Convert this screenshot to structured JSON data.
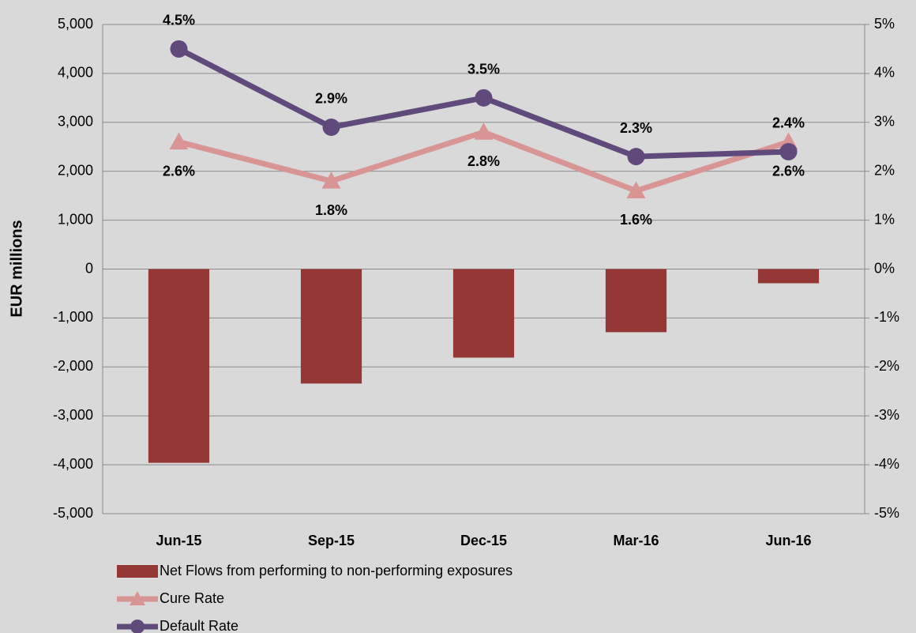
{
  "chart_data": {
    "type": "bar",
    "y_label": "EUR millions",
    "categories": [
      "Jun-15",
      "Sep-15",
      "Dec-15",
      "Mar-16",
      "Jun-16"
    ],
    "series": [
      {
        "name": "Net Flows  from performing to non-performing exposures",
        "type": "bar",
        "color": "#953735",
        "values": [
          -3960,
          -2340,
          -1810,
          -1290,
          -290
        ]
      },
      {
        "name": "Cure Rate",
        "type": "line",
        "marker": "triangle",
        "axis": "y2",
        "color": "#d99594",
        "values": [
          2.6,
          1.8,
          2.8,
          1.6,
          2.6
        ],
        "value_labels": [
          "2.6%",
          "1.8%",
          "2.8%",
          "1.6%",
          "2.6%"
        ]
      },
      {
        "name": "Default Rate",
        "type": "line",
        "marker": "circle",
        "axis": "y2",
        "color": "#604a7b",
        "values": [
          4.5,
          2.9,
          3.5,
          2.3,
          2.4
        ],
        "value_labels": [
          "4.5%",
          "2.9%",
          "3.5%",
          "2.3%",
          "2.4%"
        ]
      }
    ],
    "ylim": [
      -5000,
      5000
    ],
    "yticks": [
      {
        "value": 5000,
        "label": "5,000"
      },
      {
        "value": 4000,
        "label": "4,000"
      },
      {
        "value": 3000,
        "label": "3,000"
      },
      {
        "value": 2000,
        "label": "2,000"
      },
      {
        "value": 1000,
        "label": "1,000"
      },
      0,
      {
        "value": -1000,
        "label": "-1,000"
      },
      {
        "value": -2000,
        "label": "-2,000"
      },
      {
        "value": -3000,
        "label": "-3,000"
      },
      {
        "value": -4000,
        "label": "-4,000"
      },
      {
        "value": -5000,
        "label": "-5,000"
      }
    ],
    "y2lim": [
      -5,
      5
    ],
    "y2ticks": [
      {
        "value": 5,
        "label": "5%"
      },
      {
        "value": 4,
        "label": "4%"
      },
      {
        "value": 3,
        "label": "3%"
      },
      {
        "value": 2,
        "label": "2%"
      },
      {
        "value": 1,
        "label": "1%"
      },
      {
        "value": 0,
        "label": "0%"
      },
      {
        "value": -1,
        "label": "-1%"
      },
      {
        "value": -2,
        "label": "-2%"
      },
      {
        "value": -3,
        "label": "-3%"
      },
      {
        "value": -4,
        "label": "-4%"
      },
      {
        "value": -5,
        "label": "-5%"
      }
    ],
    "grid": true
  }
}
